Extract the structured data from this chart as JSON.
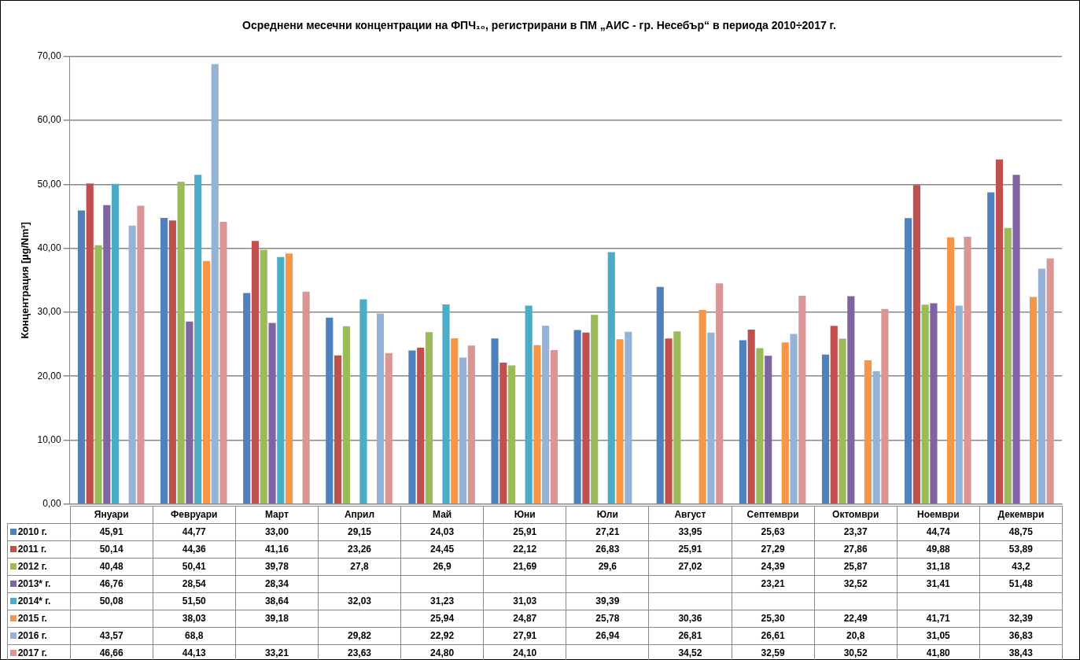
{
  "chart_data": {
    "type": "bar",
    "title": "Осреднени месечни концентрации на ФПЧ₁₀, регистрирани в ПМ „АИС - гр. Несебър“ в периода 2010÷2017 г.",
    "ylabel": "Концентрация [µg/Nm³]",
    "categories": [
      "Януари",
      "Февруари",
      "Март",
      "Април",
      "Май",
      "Юни",
      "Юли",
      "Август",
      "Септември",
      "Октомври",
      "Ноември",
      "Декември"
    ],
    "ylim": [
      0,
      70
    ],
    "yticks": [
      {
        "value": 0,
        "label": "0,00"
      },
      {
        "value": 10,
        "label": "10,00"
      },
      {
        "value": 20,
        "label": "20,00"
      },
      {
        "value": 30,
        "label": "30,00"
      },
      {
        "value": 40,
        "label": "40,00"
      },
      {
        "value": 50,
        "label": "50,00"
      },
      {
        "value": 60,
        "label": "60,00"
      },
      {
        "value": 70,
        "label": "70,00"
      }
    ],
    "grid": "y",
    "legend": "bottom left",
    "series": [
      {
        "name": "2010 г.",
        "color": "#4f81bd",
        "values": [
          45.91,
          44.77,
          33.0,
          29.15,
          24.03,
          25.91,
          27.21,
          33.95,
          25.63,
          23.37,
          44.74,
          48.75
        ],
        "value_labels": [
          "45,91",
          "44,77",
          "33,00",
          "29,15",
          "24,03",
          "25,91",
          "27,21",
          "33,95",
          "25,63",
          "23,37",
          "44,74",
          "48,75"
        ]
      },
      {
        "name": "2011 г.",
        "color": "#c0504d",
        "values": [
          50.14,
          44.36,
          41.16,
          23.26,
          24.45,
          22.12,
          26.83,
          25.91,
          27.29,
          27.86,
          49.88,
          53.89
        ],
        "value_labels": [
          "50,14",
          "44,36",
          "41,16",
          "23,26",
          "24,45",
          "22,12",
          "26,83",
          "25,91",
          "27,29",
          "27,86",
          "49,88",
          "53,89"
        ]
      },
      {
        "name": "2012 г.",
        "color": "#9bbb59",
        "values": [
          40.48,
          50.41,
          39.78,
          27.8,
          26.9,
          21.69,
          29.6,
          27.02,
          24.39,
          25.87,
          31.18,
          43.2
        ],
        "value_labels": [
          "40,48",
          "50,41",
          "39,78",
          "27,8",
          "26,9",
          "21,69",
          "29,6",
          "27,02",
          "24,39",
          "25,87",
          "31,18",
          "43,2"
        ]
      },
      {
        "name": "2013* г.",
        "color": "#8064a2",
        "values": [
          46.76,
          28.54,
          28.34,
          null,
          null,
          null,
          null,
          null,
          23.21,
          32.52,
          31.41,
          51.48
        ],
        "value_labels": [
          "46,76",
          "28,54",
          "28,34",
          null,
          null,
          null,
          null,
          null,
          "23,21",
          "32,52",
          "31,41",
          "51,48"
        ]
      },
      {
        "name": "2014* г.",
        "color": "#4bacc6",
        "values": [
          50.08,
          51.5,
          38.64,
          32.03,
          31.23,
          31.03,
          39.39,
          null,
          null,
          null,
          null,
          null
        ],
        "value_labels": [
          "50,08",
          "51,50",
          "38,64",
          "32,03",
          "31,23",
          "31,03",
          "39,39",
          null,
          null,
          null,
          null,
          null
        ]
      },
      {
        "name": "2015 г.",
        "color": "#f79646",
        "values": [
          null,
          38.03,
          39.18,
          null,
          25.94,
          24.87,
          25.78,
          30.36,
          25.3,
          22.49,
          41.71,
          32.39
        ],
        "value_labels": [
          null,
          "38,03",
          "39,18",
          null,
          "25,94",
          "24,87",
          "25,78",
          "30,36",
          "25,30",
          "22,49",
          "41,71",
          "32,39"
        ]
      },
      {
        "name": "2016 г.",
        "color": "#95b3d7",
        "values": [
          43.57,
          68.8,
          null,
          29.82,
          22.92,
          27.91,
          26.94,
          26.81,
          26.61,
          20.8,
          31.05,
          36.83
        ],
        "value_labels": [
          "43,57",
          "68,8",
          null,
          "29,82",
          "22,92",
          "27,91",
          "26,94",
          "26,81",
          "26,61",
          "20,8",
          "31,05",
          "36,83"
        ]
      },
      {
        "name": "2017 г.",
        "color": "#d99694",
        "values": [
          46.66,
          44.13,
          33.21,
          23.63,
          24.8,
          24.1,
          null,
          34.52,
          32.59,
          30.52,
          41.8,
          38.43
        ],
        "value_labels": [
          "46,66",
          "44,13",
          "33,21",
          "23,63",
          "24,80",
          "24,10",
          null,
          "34,52",
          "32,59",
          "30,52",
          "41,80",
          "38,43"
        ]
      }
    ]
  }
}
